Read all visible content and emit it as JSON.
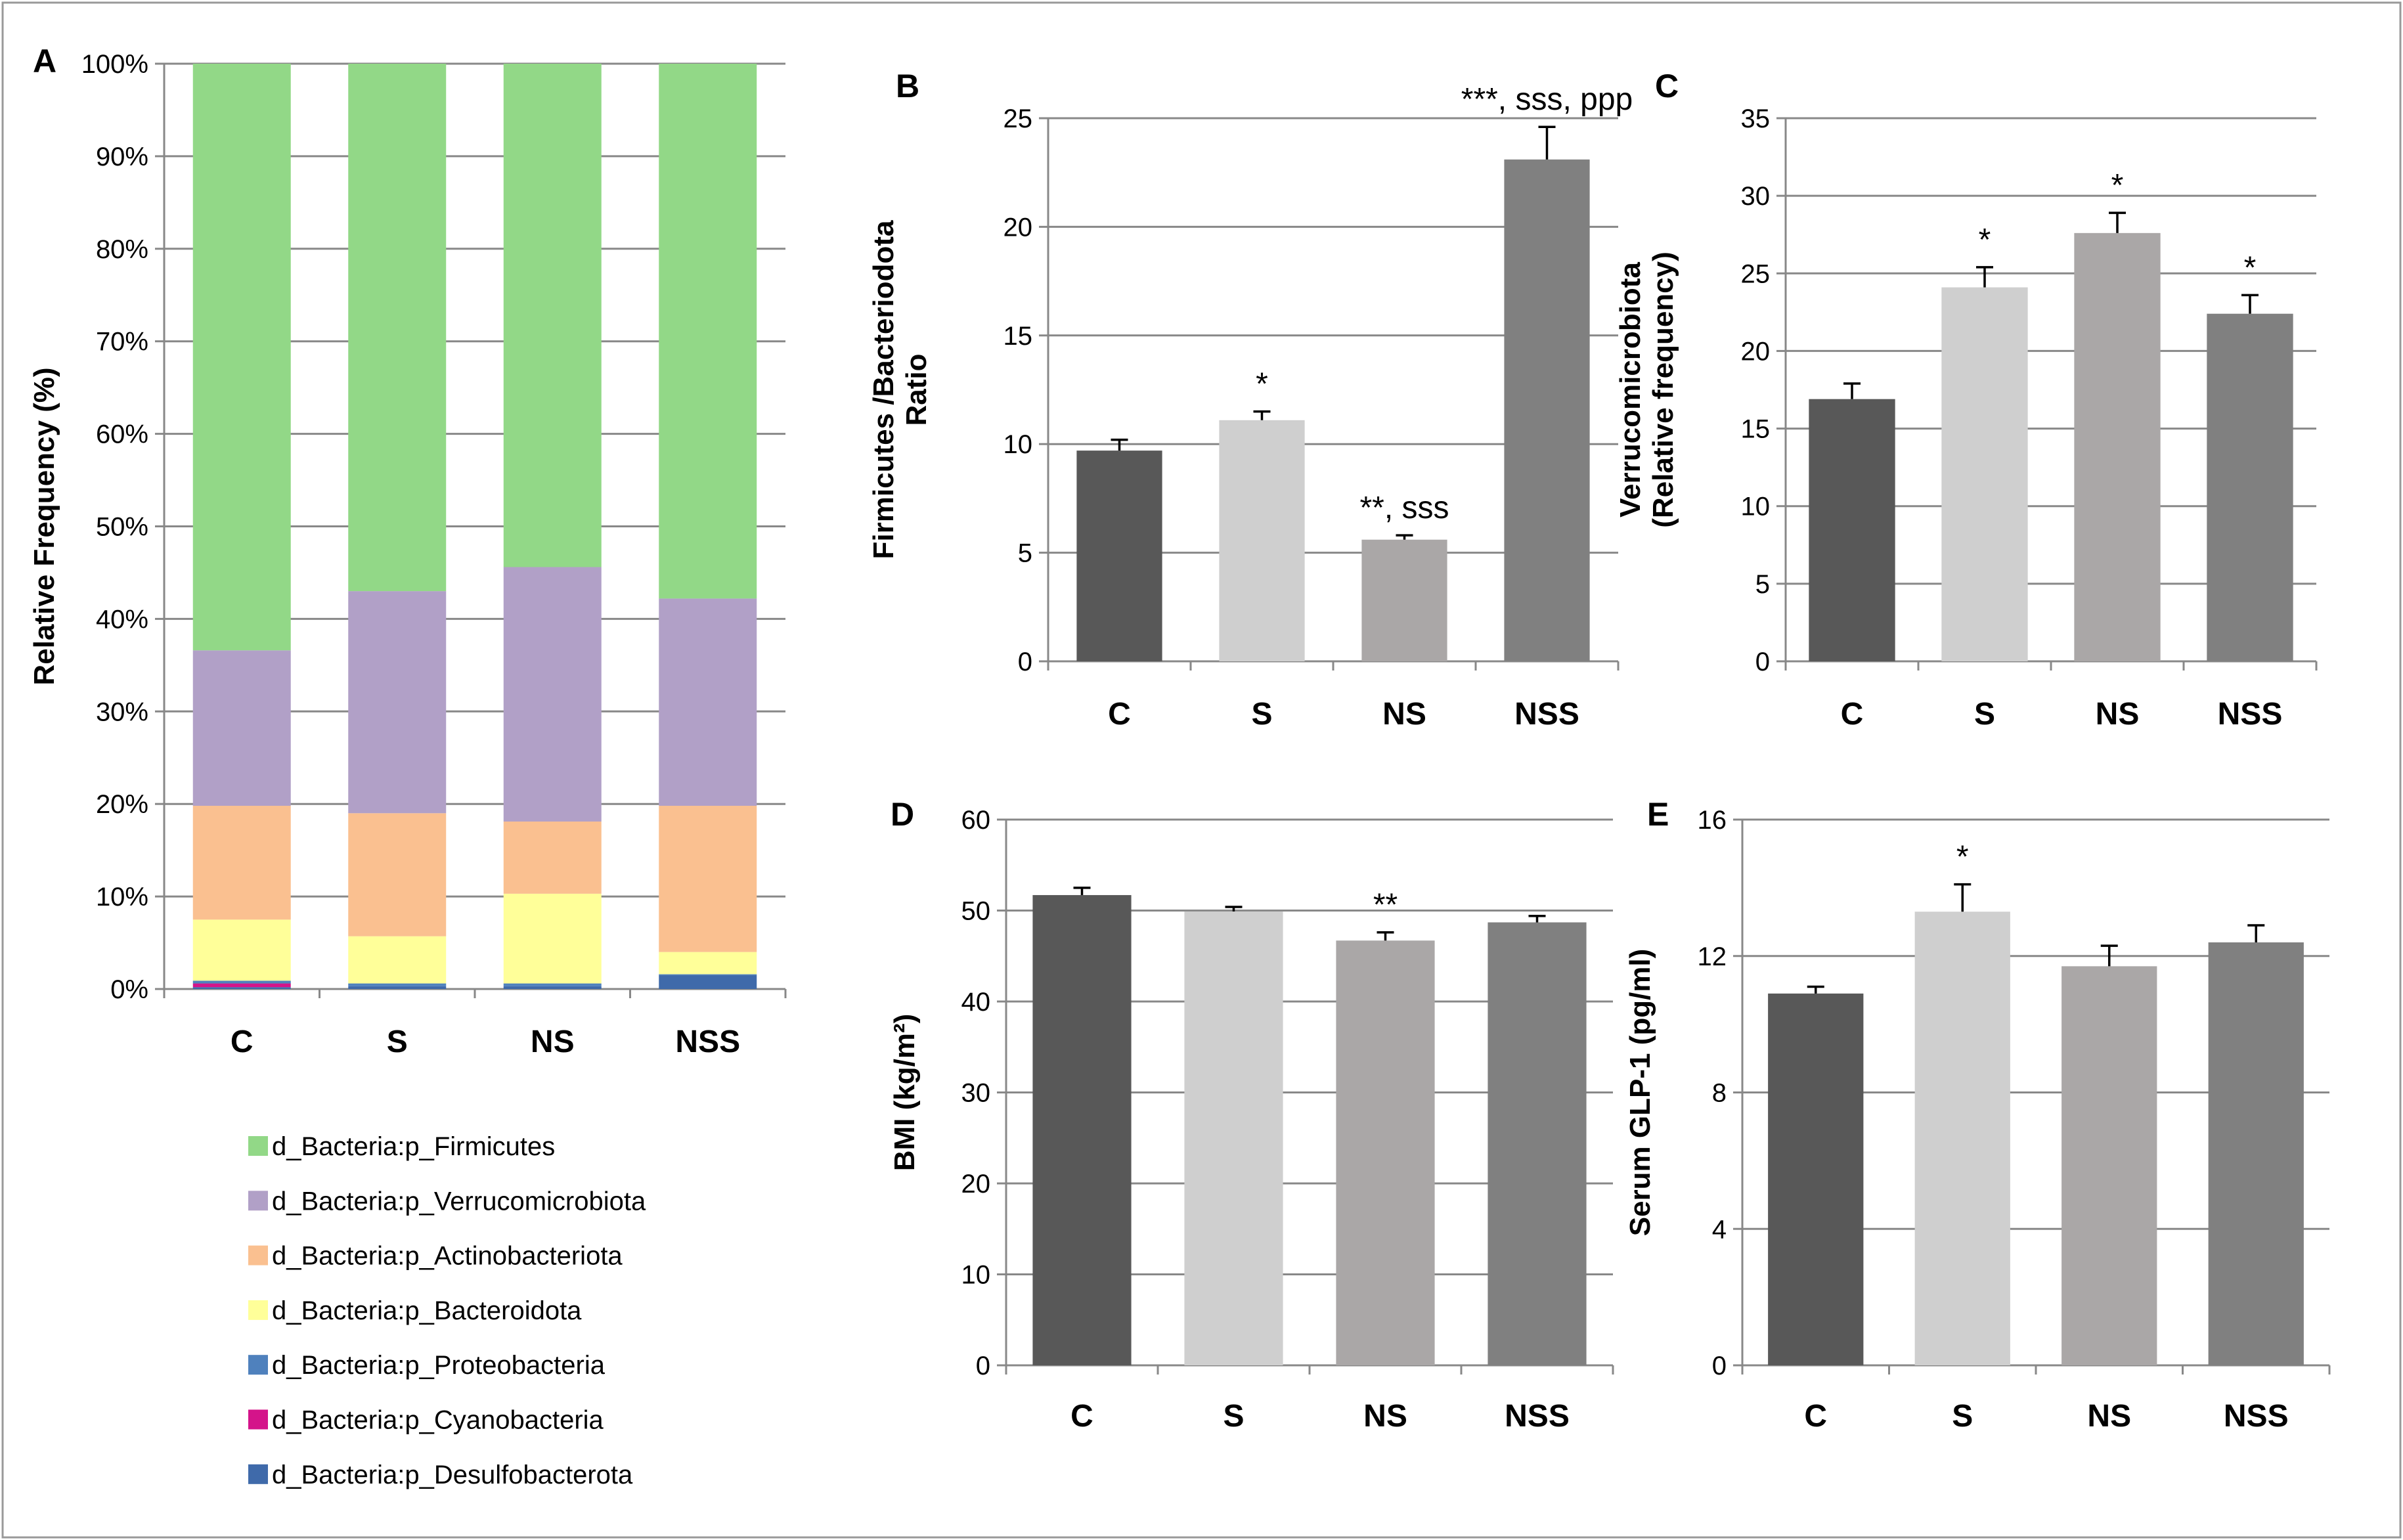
{
  "colors": {
    "grid": "#888888",
    "axis": "#888888",
    "border": "#999999",
    "bar_C": "#585858",
    "bar_S": "#cfcfcf",
    "bar_NS": "#aaa7a7",
    "bar_NSS": "#808080"
  },
  "chart_data": [
    {
      "panel": "A",
      "type": "bar",
      "stacked": true,
      "ylabel": "Relative Frequency (%)",
      "ylim": [
        0,
        100
      ],
      "yticks": [
        0,
        10,
        20,
        30,
        40,
        50,
        60,
        70,
        80,
        90,
        100
      ],
      "ytick_suffix": "%",
      "categories": [
        "C",
        "S",
        "NS",
        "NSS"
      ],
      "series": [
        {
          "name": "d_Bacteria:p_Desulfobacterota",
          "color": "#3f6aaa",
          "values": [
            0.2,
            0.3,
            0.3,
            1.5
          ]
        },
        {
          "name": "d_Bacteria:p_Cyanobacteria",
          "color": "#d4148a",
          "values": [
            0.4,
            0.0,
            0.0,
            0.0
          ]
        },
        {
          "name": "d_Bacteria:p_Proteobacteria",
          "color": "#4f81bd",
          "values": [
            0.3,
            0.3,
            0.3,
            0.1
          ]
        },
        {
          "name": "d_Bacteria:p_Bacteroidota",
          "color": "#ffff99",
          "values": [
            6.6,
            5.1,
            9.7,
            2.4
          ]
        },
        {
          "name": "d_Bacteria:p_Actinobacteriota",
          "color": "#fac090",
          "values": [
            12.3,
            13.3,
            7.8,
            15.8
          ]
        },
        {
          "name": "d_Bacteria:p_Verrucomicrobiota",
          "color": "#b1a0c7",
          "values": [
            16.8,
            24.0,
            27.5,
            22.4
          ]
        },
        {
          "name": "d_Bacteria:p_Firmicutes",
          "color": "#92d887",
          "values": [
            63.4,
            57.0,
            54.4,
            57.8
          ]
        }
      ],
      "legend_order": [
        "d_Bacteria:p_Firmicutes",
        "d_Bacteria:p_Verrucomicrobiota",
        "d_Bacteria:p_Actinobacteriota",
        "d_Bacteria:p_Bacteroidota",
        "d_Bacteria:p_Proteobacteria",
        "d_Bacteria:p_Cyanobacteria",
        "d_Bacteria:p_Desulfobacterota"
      ],
      "legend_position": "bottom"
    },
    {
      "panel": "B",
      "type": "bar",
      "ylabel_lines": [
        "Firmicutes /Bacteriodota",
        "Ratio"
      ],
      "ylim": [
        0,
        25
      ],
      "yticks": [
        0,
        5,
        10,
        15,
        20,
        25
      ],
      "categories": [
        "C",
        "S",
        "NS",
        "NSS"
      ],
      "values": [
        9.7,
        11.1,
        5.6,
        23.1
      ],
      "errors": [
        0.5,
        0.4,
        0.2,
        1.5
      ],
      "annotations": [
        "",
        "*",
        "**, sss",
        "***, sss, ppp"
      ]
    },
    {
      "panel": "C",
      "type": "bar",
      "ylabel_lines": [
        "Verrucomicrobiota",
        "(Relative frequency)"
      ],
      "ylim": [
        0,
        35
      ],
      "yticks": [
        0,
        5,
        10,
        15,
        20,
        25,
        30,
        35
      ],
      "categories": [
        "C",
        "S",
        "NS",
        "NSS"
      ],
      "values": [
        16.9,
        24.1,
        27.6,
        22.4
      ],
      "errors": [
        1.0,
        1.3,
        1.3,
        1.2
      ],
      "annotations": [
        "",
        "*",
        "*",
        "*"
      ]
    },
    {
      "panel": "D",
      "type": "bar",
      "ylabel_lines": [
        "BMI (kg/m²)"
      ],
      "ylim": [
        0,
        60
      ],
      "yticks": [
        0,
        10,
        20,
        30,
        40,
        50,
        60
      ],
      "categories": [
        "C",
        "S",
        "NS",
        "NSS"
      ],
      "values": [
        51.7,
        49.9,
        46.7,
        48.7
      ],
      "errors": [
        0.8,
        0.5,
        0.9,
        0.7
      ],
      "annotations": [
        "",
        "",
        "**",
        ""
      ]
    },
    {
      "panel": "E",
      "type": "bar",
      "ylabel_lines": [
        "Serum GLP-1 (pg/ml)"
      ],
      "ylim": [
        0,
        16
      ],
      "yticks": [
        0,
        4,
        8,
        12,
        16
      ],
      "categories": [
        "C",
        "S",
        "NS",
        "NSS"
      ],
      "values": [
        10.9,
        13.3,
        11.7,
        12.4
      ],
      "errors": [
        0.2,
        0.8,
        0.6,
        0.5
      ],
      "annotations": [
        "",
        "*",
        "",
        ""
      ]
    }
  ]
}
